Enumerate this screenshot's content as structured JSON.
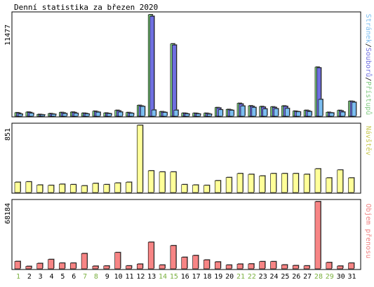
{
  "title": "Denní statistika za březen 2020",
  "colors": {
    "background": "#ffffff",
    "panel_border": "#000000",
    "hits": "#7fc97f",
    "files": "#6f6fe0",
    "pages": "#7bbdf0",
    "visits": "#ffff99",
    "kbytes": "#f78585",
    "day_normal": "#000000",
    "day_weekend": "#7ab03f",
    "panel_label_visits": "#c8c850",
    "panel_label_kbytes": "#f08080"
  },
  "days": [
    "1",
    "2",
    "3",
    "4",
    "5",
    "6",
    "7",
    "8",
    "9",
    "10",
    "11",
    "12",
    "13",
    "14",
    "15",
    "16",
    "17",
    "18",
    "19",
    "20",
    "21",
    "22",
    "23",
    "24",
    "25",
    "26",
    "27",
    "28",
    "29",
    "30",
    "31"
  ],
  "weekend_days": [
    "1",
    "7",
    "8",
    "14",
    "15",
    "21",
    "22",
    "28",
    "29"
  ],
  "chart_data": [
    {
      "type": "bar",
      "name": "hits-files-pages",
      "ymax_label": "11477",
      "ylim": [
        0,
        11477
      ],
      "legend": {
        "placement": "right",
        "parts": [
          "Stránek",
          "/",
          "Souborů",
          "/",
          "Přístupů"
        ]
      },
      "series": [
        {
          "name": "Přístupů",
          "values": [
            400,
            470,
            210,
            300,
            430,
            470,
            350,
            570,
            370,
            670,
            420,
            1230,
            11477,
            520,
            8180,
            350,
            340,
            340,
            980,
            770,
            1460,
            1180,
            1100,
            1060,
            1170,
            580,
            670,
            5550,
            450,
            660,
            1700
          ]
        },
        {
          "name": "Souborů",
          "values": [
            340,
            420,
            180,
            260,
            380,
            410,
            310,
            510,
            320,
            600,
            370,
            1160,
            11300,
            470,
            8050,
            310,
            300,
            290,
            930,
            720,
            1380,
            1110,
            1030,
            990,
            1110,
            530,
            610,
            5470,
            400,
            600,
            1660
          ]
        },
        {
          "name": "Stránek",
          "values": [
            240,
            330,
            150,
            220,
            300,
            320,
            250,
            450,
            280,
            470,
            320,
            1100,
            700,
            420,
            680,
            250,
            250,
            230,
            730,
            660,
            1150,
            990,
            820,
            850,
            880,
            490,
            520,
            1900,
            370,
            470,
            1570
          ]
        }
      ]
    },
    {
      "type": "bar",
      "name": "visits",
      "ymax_label": "851",
      "ylim": [
        0,
        851
      ],
      "legend": {
        "placement": "right",
        "label": "Návštěv"
      },
      "series": [
        {
          "name": "Návštěv",
          "values": [
            130,
            135,
            95,
            90,
            105,
            100,
            85,
            115,
            100,
            120,
            130,
            851,
            275,
            260,
            260,
            100,
            95,
            90,
            150,
            190,
            240,
            230,
            210,
            240,
            240,
            240,
            230,
            300,
            185,
            285,
            185
          ]
        }
      ]
    },
    {
      "type": "bar",
      "name": "kbytes",
      "ymax_label": "68184",
      "ylim": [
        0,
        68184
      ],
      "legend": {
        "placement": "right",
        "label": "Objem přenosu"
      },
      "series": [
        {
          "name": "Objem přenosu",
          "values": [
            7500,
            2500,
            5500,
            9500,
            5800,
            5800,
            15500,
            2700,
            2900,
            16500,
            3000,
            4800,
            27000,
            3800,
            23500,
            11700,
            13500,
            9000,
            7000,
            3800,
            4800,
            5000,
            7300,
            7300,
            4000,
            3300,
            3000,
            68184,
            6400,
            2800,
            5800
          ]
        }
      ]
    }
  ]
}
